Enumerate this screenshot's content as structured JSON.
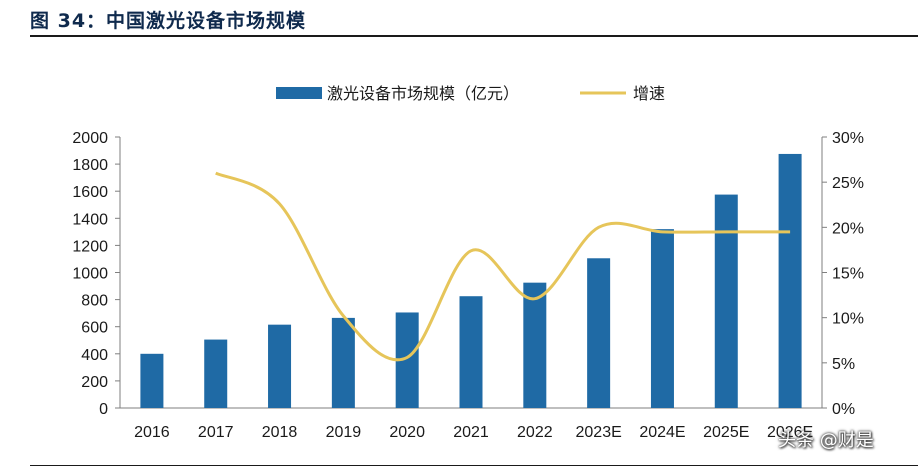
{
  "figure": {
    "title": "图 34：中国激光设备市场规模",
    "watermark": "头条 @财是"
  },
  "chart_data": {
    "type": "bar",
    "categories": [
      "2016",
      "2017",
      "2018",
      "2019",
      "2020",
      "2021",
      "2022",
      "2023E",
      "2024E",
      "2025E",
      "2026E"
    ],
    "series": [
      {
        "name": "激光设备市场规模（亿元）",
        "type": "bar",
        "axis": "left",
        "color": "#1f6aa5",
        "values": [
          400,
          505,
          615,
          665,
          705,
          825,
          925,
          1105,
          1320,
          1575,
          1875
        ]
      },
      {
        "name": "增速",
        "type": "line",
        "axis": "right",
        "color": "#e6c55a",
        "values": [
          null,
          26.0,
          22.6,
          10.2,
          5.6,
          17.4,
          12.1,
          20.0,
          19.5,
          19.5,
          19.5
        ]
      }
    ],
    "y_left": {
      "ylim": [
        0,
        2000
      ],
      "ticks": [
        "0",
        "200",
        "400",
        "600",
        "800",
        "1000",
        "1200",
        "1400",
        "1600",
        "1800",
        "2000"
      ]
    },
    "y_right": {
      "ylim": [
        0,
        30
      ],
      "ticks": [
        "0%",
        "5%",
        "10%",
        "15%",
        "20%",
        "25%",
        "30%"
      ]
    },
    "xlabel": "",
    "ylabel": "",
    "legend": "top-center",
    "grid": false
  }
}
